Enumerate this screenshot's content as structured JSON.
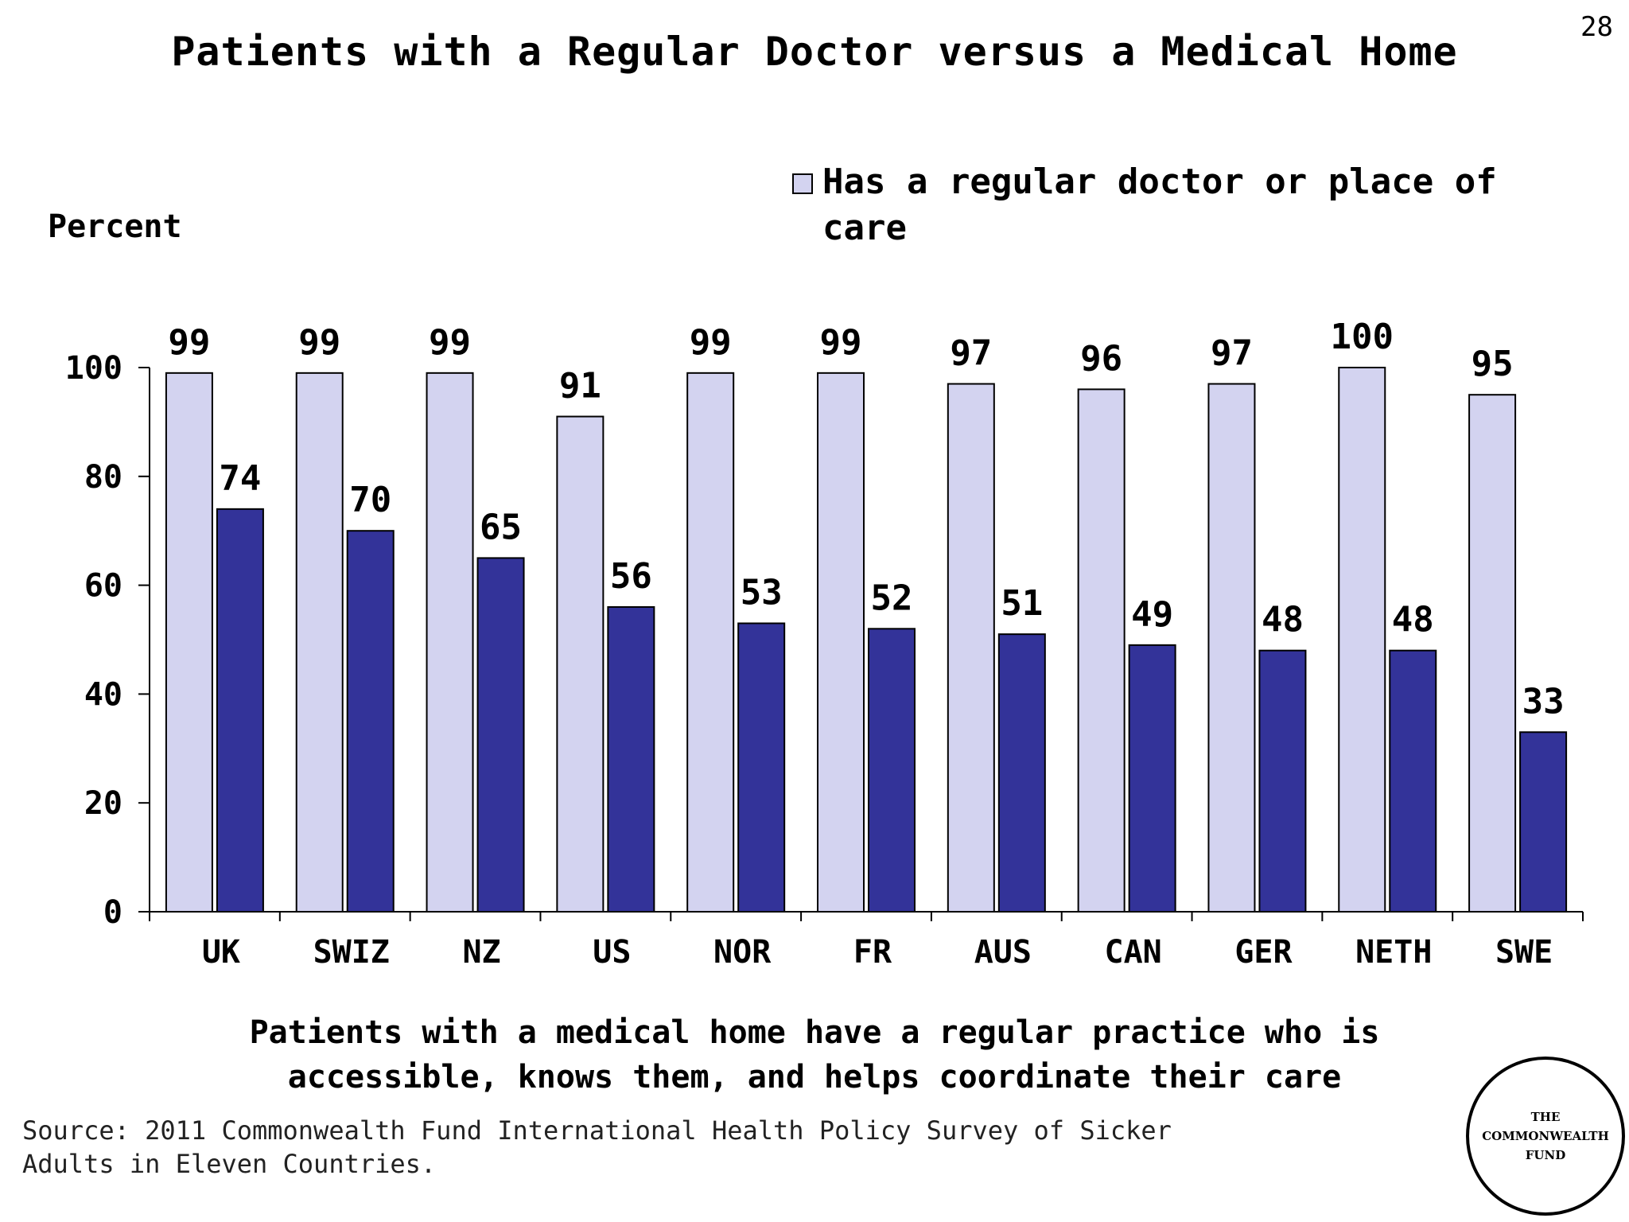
{
  "page": {
    "number": "28",
    "title": "Patients with a Regular Doctor versus a Medical Home",
    "footnote_line1": "Patients with a medical home have a regular practice who is",
    "footnote_line2": "accessible, knows them, and helps coordinate their care",
    "source_line1": "Source: 2011 Commonwealth Fund International Health Policy Survey of Sicker",
    "source_line2": "Adults in Eleven Countries.",
    "logo_line1": "THE",
    "logo_line2": "COMMONWEALTH",
    "logo_line3": "FUND"
  },
  "chart_data": {
    "type": "bar",
    "title": "Patients with a Regular Doctor versus a Medical Home",
    "ylabel": "Percent",
    "xlabel": "",
    "ylim": [
      0,
      100
    ],
    "yticks": [
      0,
      20,
      40,
      60,
      80,
      100
    ],
    "grid": false,
    "legend_position": "top-right",
    "categories": [
      "UK",
      "SWIZ",
      "NZ",
      "US",
      "NOR",
      "FR",
      "AUS",
      "CAN",
      "GER",
      "NETH",
      "SWE"
    ],
    "series": [
      {
        "name": "Has a regular doctor or place of care",
        "color": "#d3d3f0",
        "values": [
          99,
          99,
          99,
          91,
          99,
          99,
          97,
          96,
          97,
          100,
          95
        ]
      },
      {
        "color": "#333399",
        "values": [
          74,
          70,
          65,
          56,
          53,
          52,
          51,
          49,
          48,
          48,
          33
        ]
      }
    ]
  }
}
